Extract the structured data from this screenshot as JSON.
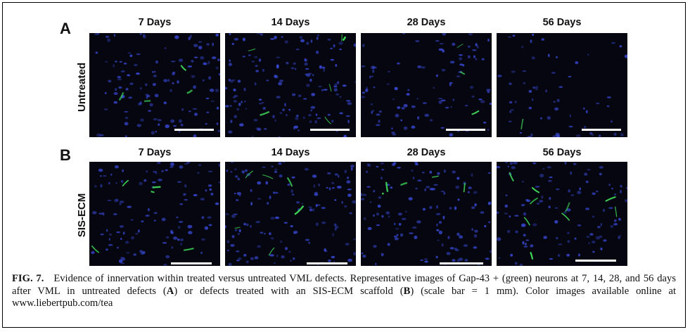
{
  "figure": {
    "panels": [
      {
        "letter": "A",
        "row_label": "Untreated",
        "columns": [
          "7 Days",
          "14 Days",
          "28 Days",
          "56 Days"
        ]
      },
      {
        "letter": "B",
        "row_label": "SIS-ECM",
        "columns": [
          "7 Days",
          "14 Days",
          "28 Days",
          "56 Days"
        ]
      }
    ],
    "colors": {
      "background": "#05060f",
      "nuclei": "#3a4ad8",
      "gap43": "#3fd95a",
      "scale_bar": "#ffffff"
    }
  },
  "caption": {
    "label": "FIG. 7.",
    "text_1": "Evidence of innervation within treated versus untreated VML defects. Representative images of Gap-43 + (green) neurons at 7, 14, 28, and 56 days after VML in untreated defects (",
    "bold_a": "A",
    "text_2": ") or defects treated with an SIS-ECM scaffold (",
    "bold_b": "B",
    "text_3": ") (scale bar = 1 mm). Color images available online at www.liebertpub.com/tea"
  }
}
